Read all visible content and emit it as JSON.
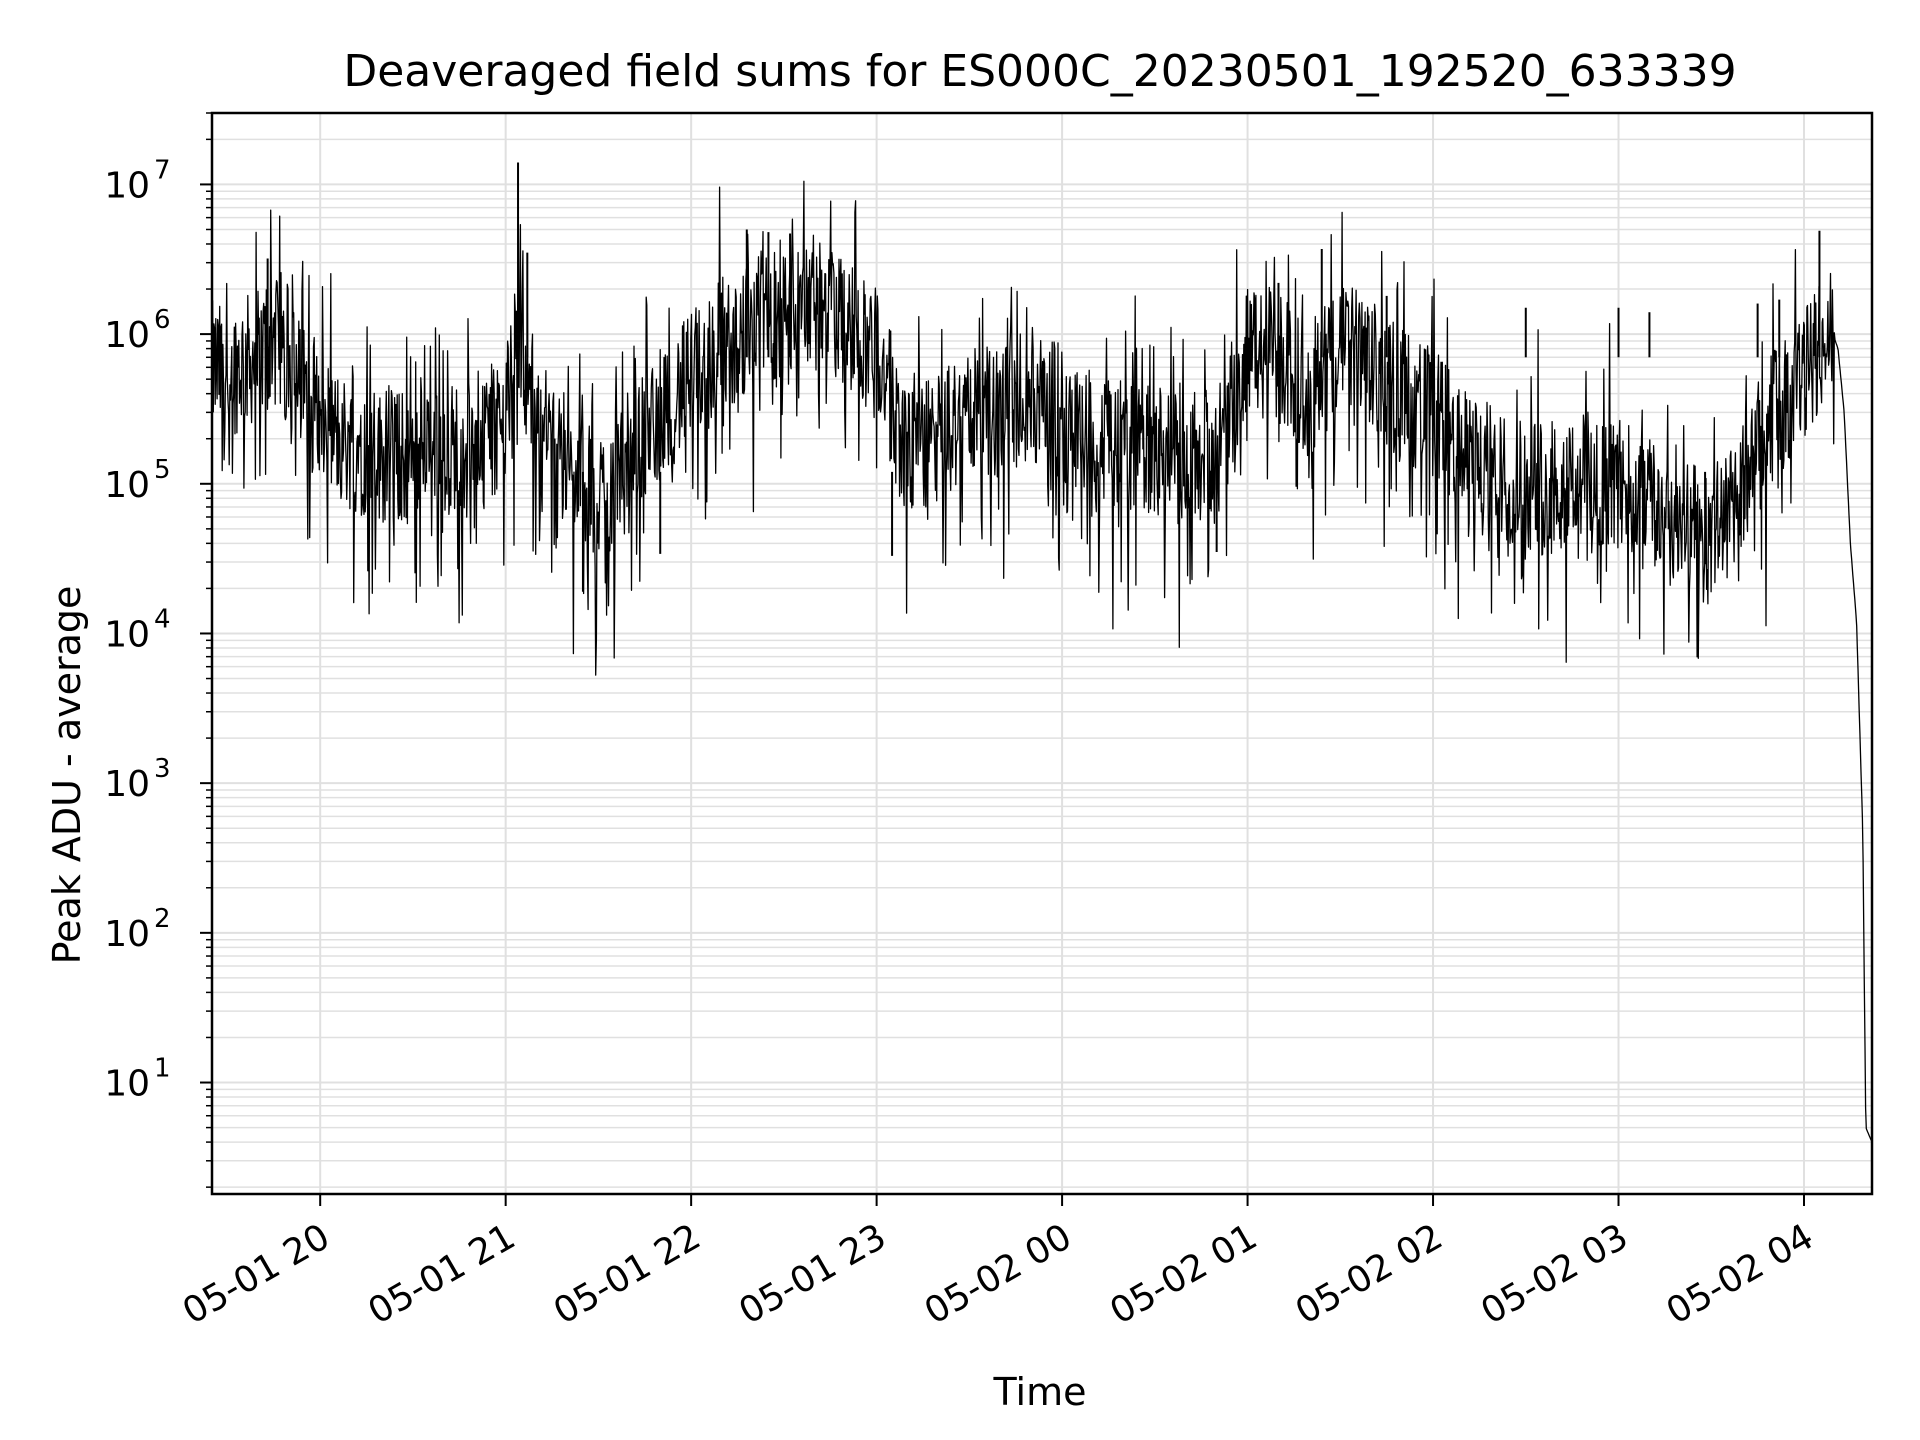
{
  "chart_data": {
    "type": "line",
    "title": "Deaveraged field sums for ES000C_20230501_192520_633339",
    "xlabel": "Time",
    "ylabel": "Peak ADU - average",
    "yscale": "log",
    "ylim": [
      1.8,
      30000000
    ],
    "xlim": [
      "2023-05-01 19:25",
      "2023-05-02 04:22"
    ],
    "x_ticks": [
      "2023-05-01 20:00",
      "2023-05-01 21:00",
      "2023-05-01 22:00",
      "2023-05-01 23:00",
      "2023-05-02 00:00",
      "2023-05-02 01:00",
      "2023-05-02 02:00",
      "2023-05-02 03:00",
      "2023-05-02 04:00"
    ],
    "x_tick_labels": [
      "05-01 20",
      "05-01 21",
      "05-01 22",
      "05-01 23",
      "05-02 00",
      "05-02 01",
      "05-02 02",
      "05-02 03",
      "05-02 04"
    ],
    "y_ticks": [
      10,
      100,
      1000,
      10000,
      100000,
      1000000,
      10000000
    ],
    "y_tick_bases": [
      "10",
      "10",
      "10",
      "10",
      "10",
      "10",
      "10"
    ],
    "y_tick_exponents": [
      "1",
      "2",
      "3",
      "4",
      "5",
      "6",
      "7"
    ],
    "grid": true,
    "line_color": "#000000",
    "grid_color": "#e0e0e0",
    "series": [
      {
        "x": [
          "2023-05-01 19:25",
          "2023-05-01 19:30",
          "2023-05-01 19:35",
          "2023-05-01 19:40",
          "2023-05-01 19:45",
          "2023-05-01 19:50",
          "2023-05-01 19:55",
          "2023-05-01 20:00",
          "2023-05-01 20:10",
          "2023-05-01 20:20",
          "2023-05-01 20:30",
          "2023-05-01 20:40",
          "2023-05-01 20:50",
          "2023-05-01 21:00",
          "2023-05-01 21:04",
          "2023-05-01 21:10",
          "2023-05-01 21:20",
          "2023-05-01 21:30",
          "2023-05-01 21:40",
          "2023-05-01 21:50",
          "2023-05-01 22:00",
          "2023-05-01 22:10",
          "2023-05-01 22:20",
          "2023-05-01 22:30",
          "2023-05-01 22:40",
          "2023-05-01 22:50",
          "2023-05-01 23:00",
          "2023-05-01 23:10",
          "2023-05-01 23:20",
          "2023-05-01 23:30",
          "2023-05-01 23:40",
          "2023-05-01 23:50",
          "2023-05-02 00:00",
          "2023-05-02 00:10",
          "2023-05-02 00:20",
          "2023-05-02 00:30",
          "2023-05-02 00:40",
          "2023-05-02 00:50",
          "2023-05-02 01:00",
          "2023-05-02 01:10",
          "2023-05-02 01:20",
          "2023-05-02 01:30",
          "2023-05-02 01:40",
          "2023-05-02 01:50",
          "2023-05-02 02:00",
          "2023-05-02 02:10",
          "2023-05-02 02:20",
          "2023-05-02 02:30",
          "2023-05-02 02:40",
          "2023-05-02 02:50",
          "2023-05-02 03:00",
          "2023-05-02 03:10",
          "2023-05-02 03:20",
          "2023-05-02 03:30",
          "2023-05-02 03:40",
          "2023-05-02 03:50",
          "2023-05-02 04:00",
          "2023-05-02 04:05",
          "2023-05-02 04:08",
          "2023-05-02 04:11",
          "2023-05-02 04:13",
          "2023-05-02 04:15",
          "2023-05-02 04:17",
          "2023-05-02 04:19",
          "2023-05-02 04:20",
          "2023-05-02 04:22"
        ],
        "y": [
          600000,
          550000,
          650000,
          700000,
          900000,
          600000,
          400000,
          250000,
          180000,
          150000,
          150000,
          170000,
          200000,
          250000,
          1000000,
          300000,
          120000,
          80000,
          150000,
          300000,
          500000,
          900000,
          1200000,
          1500000,
          1500000,
          1200000,
          800000,
          150000,
          200000,
          300000,
          300000,
          400000,
          300000,
          200000,
          200000,
          150000,
          150000,
          150000,
          800000,
          700000,
          400000,
          900000,
          600000,
          400000,
          300000,
          150000,
          120000,
          100000,
          110000,
          110000,
          100000,
          70000,
          50000,
          45000,
          100000,
          300000,
          500000,
          900000,
          1200000,
          800000,
          300000,
          40000,
          12000,
          500,
          5,
          4
        ],
        "spikes": [
          {
            "x": "2023-05-01 19:43",
            "y": 3200000
          },
          {
            "x": "2023-05-01 19:47",
            "y": 2500000
          },
          {
            "x": "2023-05-01 21:04",
            "y": 14000000
          },
          {
            "x": "2023-05-01 21:07",
            "y": 3500000
          },
          {
            "x": "2023-05-01 21:25",
            "y": 19000
          },
          {
            "x": "2023-05-01 21:50",
            "y": 34000
          },
          {
            "x": "2023-05-01 22:18",
            "y": 5000000
          },
          {
            "x": "2023-05-01 22:25",
            "y": 4800000
          },
          {
            "x": "2023-05-01 22:32",
            "y": 4700000
          },
          {
            "x": "2023-05-01 23:05",
            "y": 33000
          },
          {
            "x": "2023-05-02 00:50",
            "y": 35000
          },
          {
            "x": "2023-05-02 01:10",
            "y": 2200000
          },
          {
            "x": "2023-05-02 01:24",
            "y": 3700000
          },
          {
            "x": "2023-05-02 01:45",
            "y": 1800000
          },
          {
            "x": "2023-05-02 02:30",
            "y": 1500000
          },
          {
            "x": "2023-05-02 03:00",
            "y": 1500000
          },
          {
            "x": "2023-05-02 03:10",
            "y": 1400000
          },
          {
            "x": "2023-05-02 03:28",
            "y": 29000
          },
          {
            "x": "2023-05-02 03:45",
            "y": 1600000
          },
          {
            "x": "2023-05-02 03:52",
            "y": 1700000
          },
          {
            "x": "2023-05-02 04:05",
            "y": 4900000
          }
        ]
      }
    ]
  }
}
